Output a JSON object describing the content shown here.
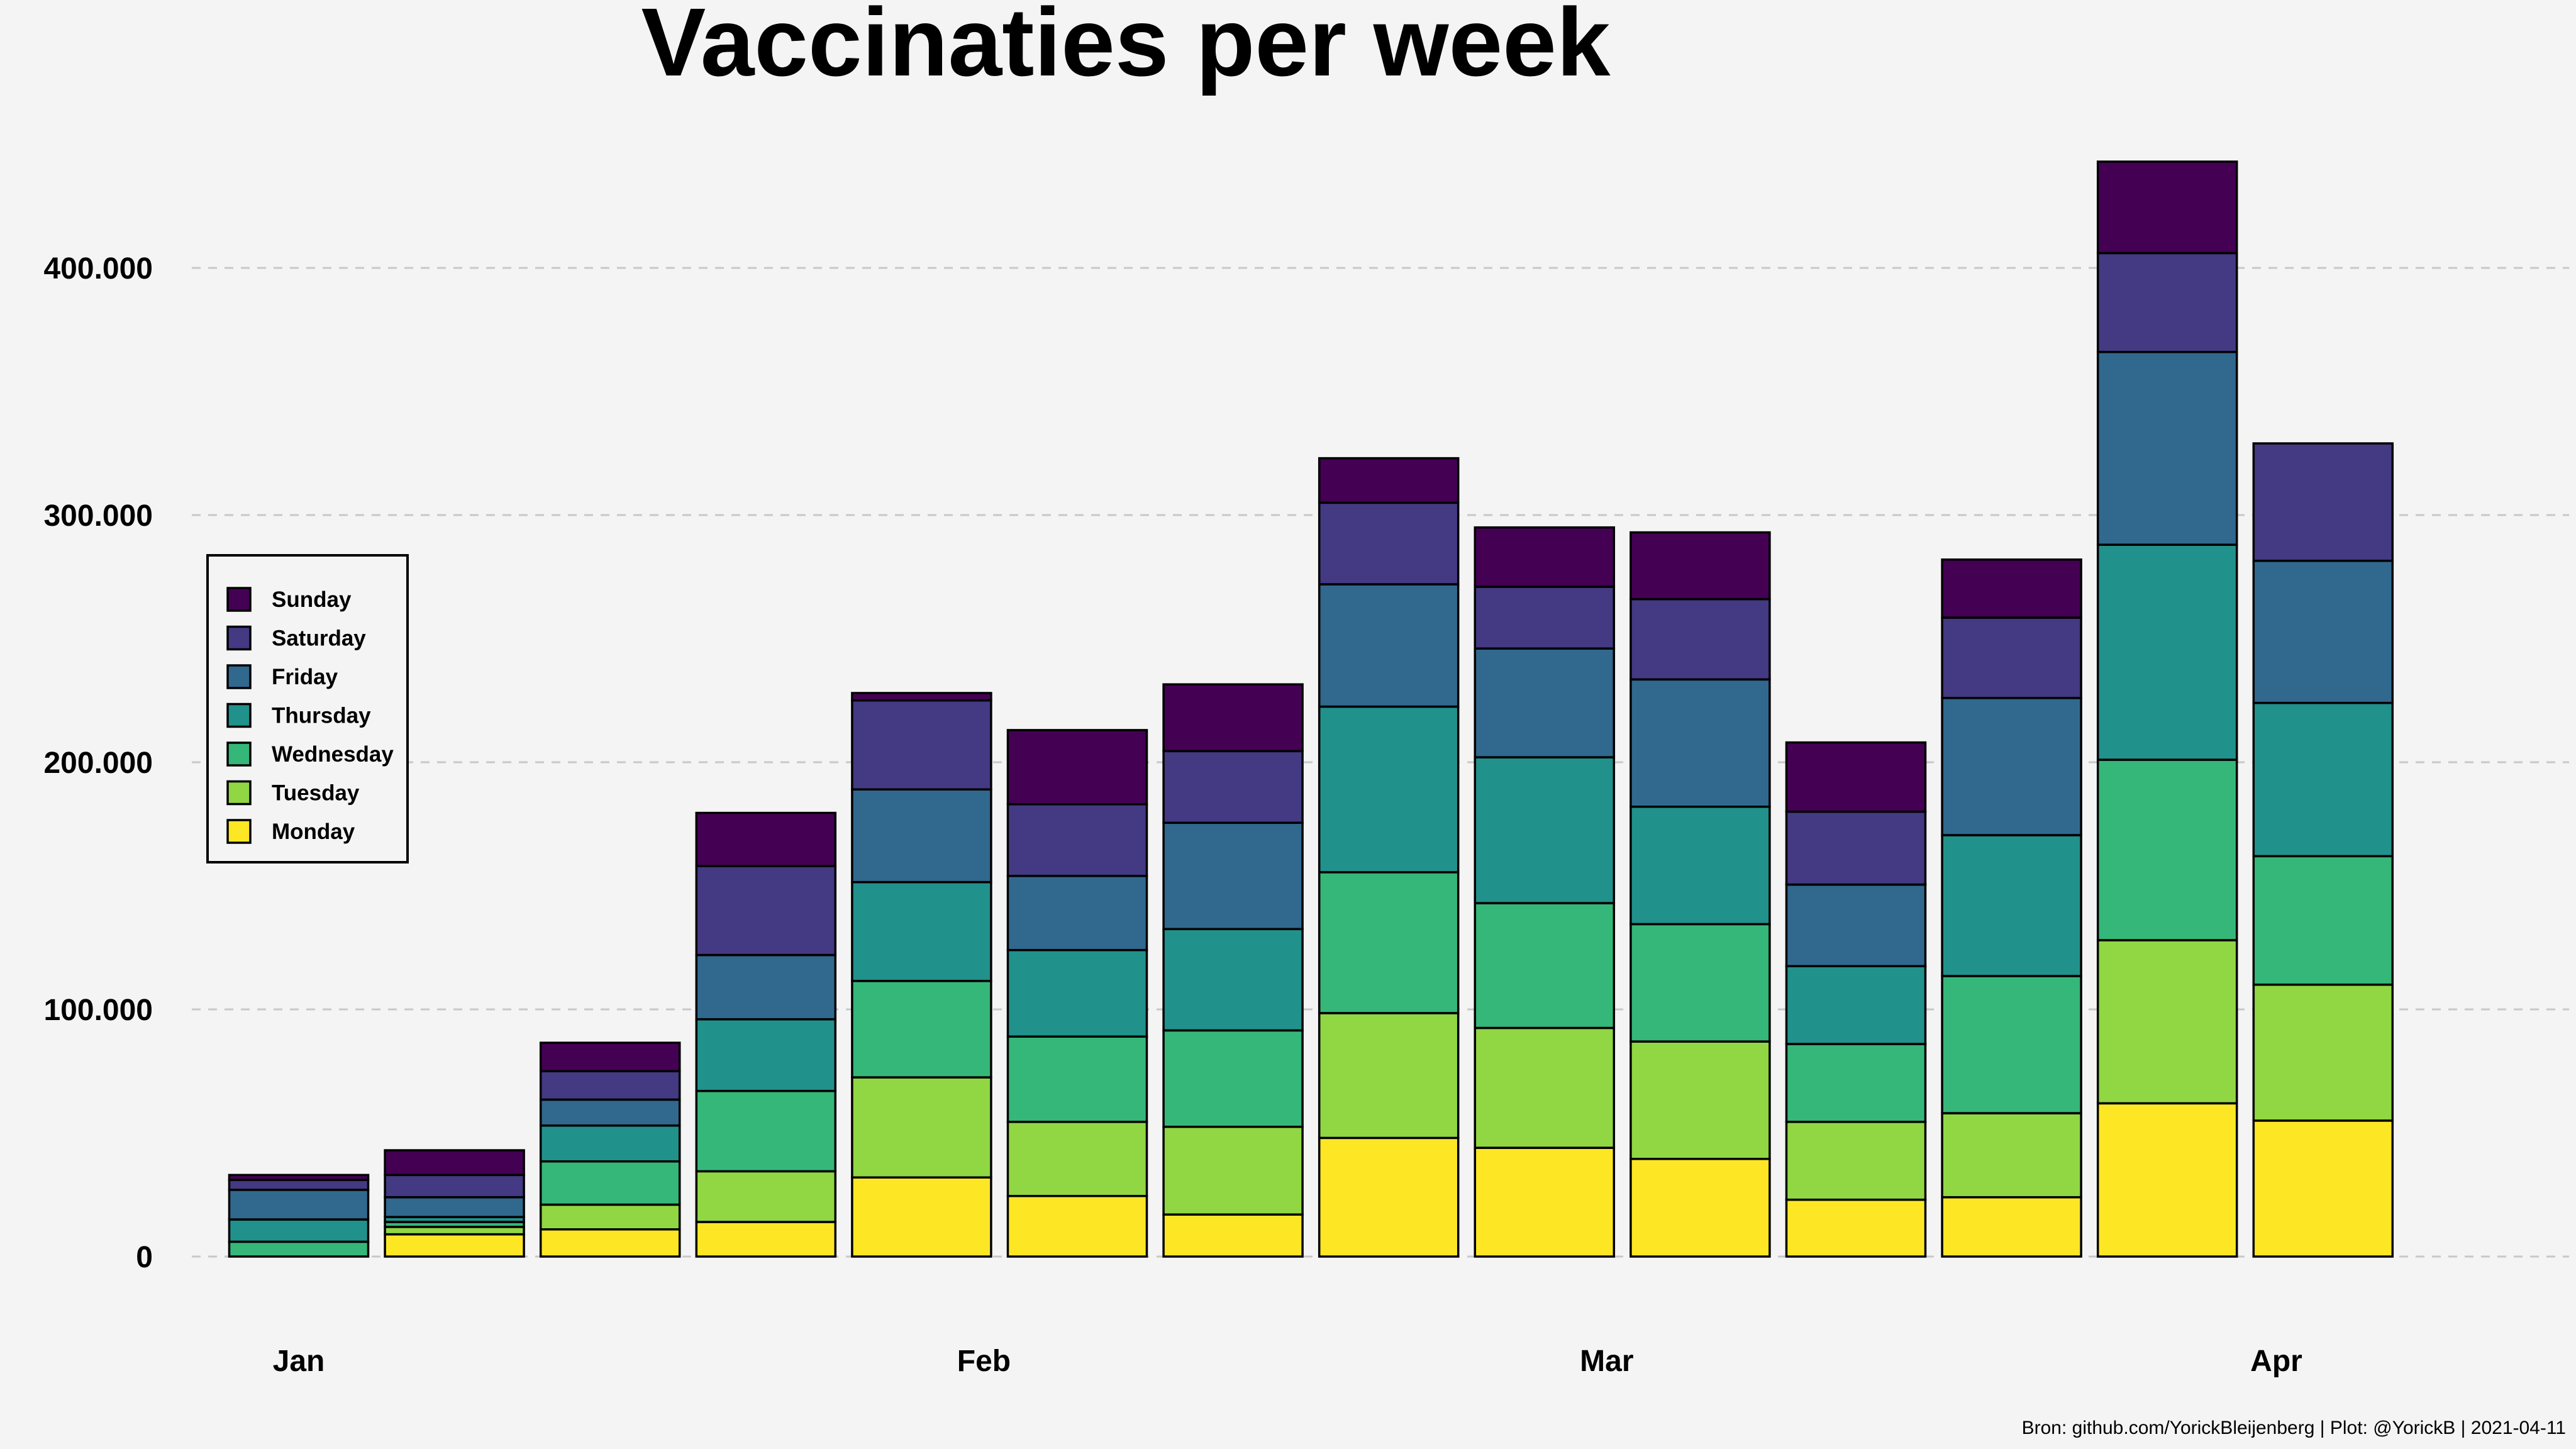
{
  "chart_data": {
    "type": "bar",
    "stacked": true,
    "title": "Vaccinaties per week",
    "xlabel": "",
    "ylabel": "",
    "ylim": [
      0,
      450000
    ],
    "yticks": [
      0,
      100000,
      200000,
      300000,
      400000
    ],
    "ytick_labels": [
      "0",
      "100.000",
      "200.000",
      "300.000",
      "400.000"
    ],
    "xtick_labels": [
      {
        "label": "Jan",
        "index": 0
      },
      {
        "label": "Feb",
        "index": 4.4
      },
      {
        "label": "Mar",
        "index": 8.4
      },
      {
        "label": "Apr",
        "index": 12.7
      }
    ],
    "legend_position": "left",
    "grid": true,
    "weeks": 14,
    "series": [
      {
        "name": "Monday",
        "color": "#fde725",
        "values": [
          0,
          9000,
          11000,
          14000,
          32000,
          24500,
          17000,
          48000,
          44000,
          39500,
          23000,
          24000,
          62000,
          55000
        ]
      },
      {
        "name": "Tuesday",
        "color": "#90d743",
        "values": [
          0,
          3000,
          10000,
          20500,
          40500,
          30000,
          35500,
          50500,
          48500,
          47500,
          31500,
          34000,
          66000,
          55000
        ]
      },
      {
        "name": "Wednesday",
        "color": "#35b779",
        "values": [
          6000,
          2000,
          17500,
          32500,
          39000,
          34500,
          39000,
          57000,
          50500,
          47500,
          31500,
          55500,
          73000,
          52000
        ]
      },
      {
        "name": "Thursday",
        "color": "#21918c",
        "values": [
          9000,
          2000,
          14500,
          29000,
          40000,
          35000,
          41000,
          67000,
          59000,
          47500,
          31500,
          57000,
          87000,
          62000
        ]
      },
      {
        "name": "Friday",
        "color": "#31688e",
        "values": [
          12000,
          8000,
          10500,
          26000,
          37500,
          30000,
          43000,
          49500,
          44000,
          51500,
          33000,
          55500,
          78000,
          57500
        ]
      },
      {
        "name": "Saturday",
        "color": "#443983",
        "values": [
          4000,
          9000,
          11500,
          36000,
          36000,
          29000,
          29000,
          33000,
          25000,
          32500,
          29500,
          32500,
          40000,
          47500
        ]
      },
      {
        "name": "Sunday",
        "color": "#440154",
        "values": [
          2000,
          10000,
          11500,
          21500,
          3000,
          30000,
          27000,
          18000,
          24000,
          27000,
          28000,
          23500,
          37000,
          0
        ]
      }
    ]
  },
  "caption": "Bron: github.com/YorickBleijenberg | Plot: @YorickB  |  2021-04-11"
}
